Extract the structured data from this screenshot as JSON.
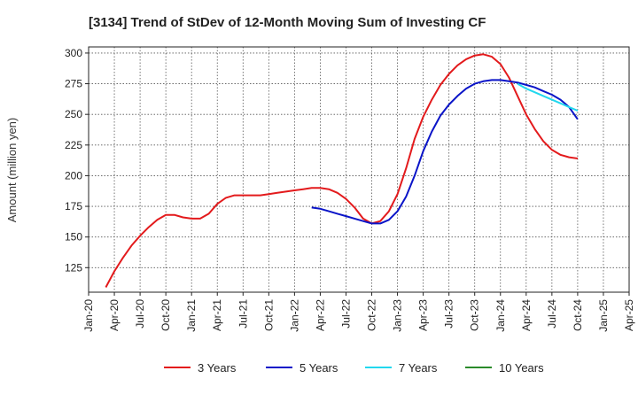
{
  "chart_data": {
    "type": "line",
    "title": "[3134]  Trend of StDev of 12-Month Moving Sum of Investing CF",
    "xlabel": "",
    "ylabel": "Amount (million yen)",
    "ylim": [
      105,
      305
    ],
    "yticks": [
      125,
      150,
      175,
      200,
      225,
      250,
      275,
      300
    ],
    "xticks": [
      "Jan-20",
      "Apr-20",
      "Jul-20",
      "Oct-20",
      "Jan-21",
      "Apr-21",
      "Jul-21",
      "Oct-21",
      "Jan-22",
      "Apr-22",
      "Jul-22",
      "Oct-22",
      "Jan-23",
      "Apr-23",
      "Jul-23",
      "Oct-23",
      "Jan-24",
      "Apr-24",
      "Jul-24",
      "Oct-24",
      "Jan-25",
      "Apr-25"
    ],
    "grid": true,
    "legend_position": "bottom",
    "series": [
      {
        "name": "3 Years",
        "color": "#e31a1c",
        "x": [
          "Mar-20",
          "Apr-20",
          "May-20",
          "Jun-20",
          "Jul-20",
          "Aug-20",
          "Sep-20",
          "Oct-20",
          "Nov-20",
          "Dec-20",
          "Jan-21",
          "Feb-21",
          "Mar-21",
          "Apr-21",
          "May-21",
          "Jun-21",
          "Jul-21",
          "Aug-21",
          "Sep-21",
          "Oct-21",
          "Nov-21",
          "Dec-21",
          "Jan-22",
          "Feb-22",
          "Mar-22",
          "Apr-22",
          "May-22",
          "Jun-22",
          "Jul-22",
          "Aug-22",
          "Sep-22",
          "Oct-22",
          "Nov-22",
          "Dec-22",
          "Jan-23",
          "Feb-23",
          "Mar-23",
          "Apr-23",
          "May-23",
          "Jun-23",
          "Jul-23",
          "Aug-23",
          "Sep-23",
          "Oct-23",
          "Nov-23",
          "Dec-23",
          "Jan-24",
          "Feb-24",
          "Mar-24",
          "Apr-24",
          "May-24",
          "Jun-24",
          "Jul-24",
          "Aug-24",
          "Sep-24",
          "Oct-24"
        ],
        "values": [
          109,
          122,
          133,
          143,
          151,
          158,
          164,
          168,
          168,
          166,
          165,
          165,
          169,
          177,
          182,
          184,
          184,
          184,
          184,
          185,
          186,
          187,
          188,
          189,
          190,
          190,
          189,
          186,
          181,
          174,
          165,
          161,
          163,
          171,
          185,
          206,
          230,
          248,
          262,
          274,
          283,
          290,
          295,
          298,
          299,
          297,
          291,
          280,
          265,
          250,
          238,
          228,
          221,
          217,
          215,
          214
        ]
      },
      {
        "name": "5 Years",
        "color": "#0a14c8",
        "x": [
          "Mar-22",
          "Apr-22",
          "May-22",
          "Jun-22",
          "Jul-22",
          "Aug-22",
          "Sep-22",
          "Oct-22",
          "Nov-22",
          "Dec-22",
          "Jan-23",
          "Feb-23",
          "Mar-23",
          "Apr-23",
          "May-23",
          "Jun-23",
          "Jul-23",
          "Aug-23",
          "Sep-23",
          "Oct-23",
          "Nov-23",
          "Dec-23",
          "Jan-24",
          "Feb-24",
          "Mar-24",
          "Apr-24",
          "May-24",
          "Jun-24",
          "Jul-24",
          "Aug-24",
          "Sep-24",
          "Oct-24"
        ],
        "values": [
          174,
          173,
          171,
          169,
          167,
          165,
          163,
          161,
          161,
          164,
          171,
          183,
          200,
          220,
          236,
          249,
          258,
          265,
          271,
          275,
          277,
          278,
          278,
          277,
          276,
          274,
          272,
          269,
          266,
          262,
          256,
          246
        ]
      },
      {
        "name": "7 Years",
        "color": "#22d8ee",
        "x": [
          "Mar-24",
          "Apr-24",
          "May-24",
          "Jun-24",
          "Jul-24",
          "Aug-24",
          "Sep-24",
          "Oct-24"
        ],
        "values": [
          275,
          271,
          268,
          265,
          262,
          259,
          256,
          253
        ]
      },
      {
        "name": "10 Years",
        "color": "#2a8a2a",
        "x": [],
        "values": []
      }
    ]
  }
}
